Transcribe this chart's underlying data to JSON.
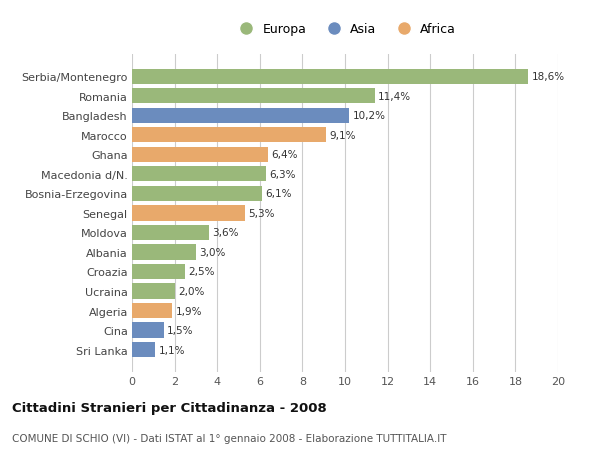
{
  "categories": [
    "Sri Lanka",
    "Cina",
    "Algeria",
    "Ucraina",
    "Croazia",
    "Albania",
    "Moldova",
    "Senegal",
    "Bosnia-Erzegovina",
    "Macedonia d/N.",
    "Ghana",
    "Marocco",
    "Bangladesh",
    "Romania",
    "Serbia/Montenegro"
  ],
  "values": [
    1.1,
    1.5,
    1.9,
    2.0,
    2.5,
    3.0,
    3.6,
    5.3,
    6.1,
    6.3,
    6.4,
    9.1,
    10.2,
    11.4,
    18.6
  ],
  "labels": [
    "1,1%",
    "1,5%",
    "1,9%",
    "2,0%",
    "2,5%",
    "3,0%",
    "3,6%",
    "5,3%",
    "6,1%",
    "6,3%",
    "6,4%",
    "9,1%",
    "10,2%",
    "11,4%",
    "18,6%"
  ],
  "colors": [
    "#6b8cbe",
    "#6b8cbe",
    "#e8a96b",
    "#9ab87a",
    "#9ab87a",
    "#9ab87a",
    "#9ab87a",
    "#e8a96b",
    "#9ab87a",
    "#9ab87a",
    "#e8a96b",
    "#e8a96b",
    "#6b8cbe",
    "#9ab87a",
    "#9ab87a"
  ],
  "legend": [
    {
      "label": "Europa",
      "color": "#9ab87a"
    },
    {
      "label": "Asia",
      "color": "#6b8cbe"
    },
    {
      "label": "Africa",
      "color": "#e8a96b"
    }
  ],
  "xlim": [
    0,
    20
  ],
  "xticks": [
    0,
    2,
    4,
    6,
    8,
    10,
    12,
    14,
    16,
    18,
    20
  ],
  "title": "Cittadini Stranieri per Cittadinanza - 2008",
  "subtitle": "COMUNE DI SCHIO (VI) - Dati ISTAT al 1° gennaio 2008 - Elaborazione TUTTITALIA.IT",
  "bg_color": "#ffffff",
  "grid_color": "#cccccc",
  "bar_height": 0.78,
  "bar_edge_color": "none"
}
